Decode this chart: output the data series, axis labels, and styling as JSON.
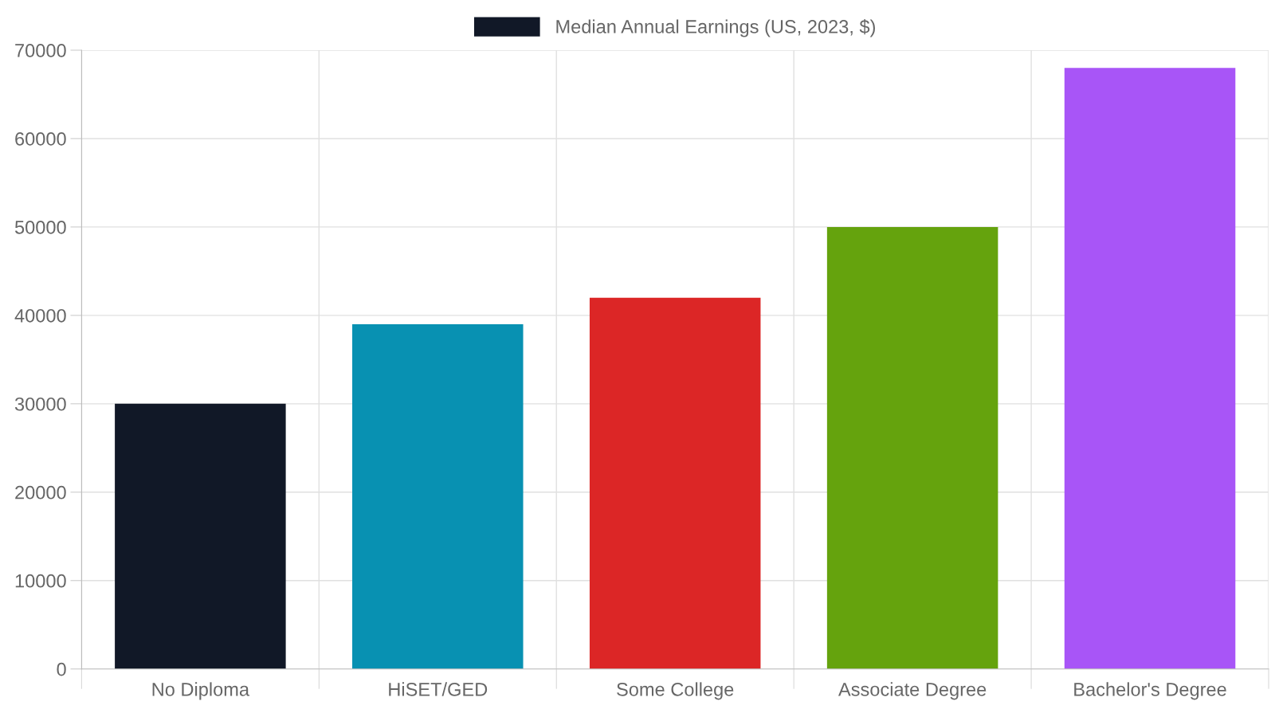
{
  "chart_data": {
    "type": "bar",
    "categories": [
      "No Diploma",
      "HiSET/GED",
      "Some College",
      "Associate Degree",
      "Bachelor's Degree"
    ],
    "series": [
      {
        "name": "Median Annual Earnings (US, 2023, $)",
        "color": "#111827",
        "colors": [
          "#111827",
          "#0891b2",
          "#dc2626",
          "#65a30d",
          "#a855f7"
        ],
        "values": [
          30000,
          39000,
          42000,
          50000,
          68000
        ]
      }
    ],
    "ylim": [
      0,
      70000
    ],
    "yticks": [
      0,
      10000,
      20000,
      30000,
      40000,
      50000,
      60000,
      70000
    ],
    "grid": true,
    "legend": "top"
  }
}
